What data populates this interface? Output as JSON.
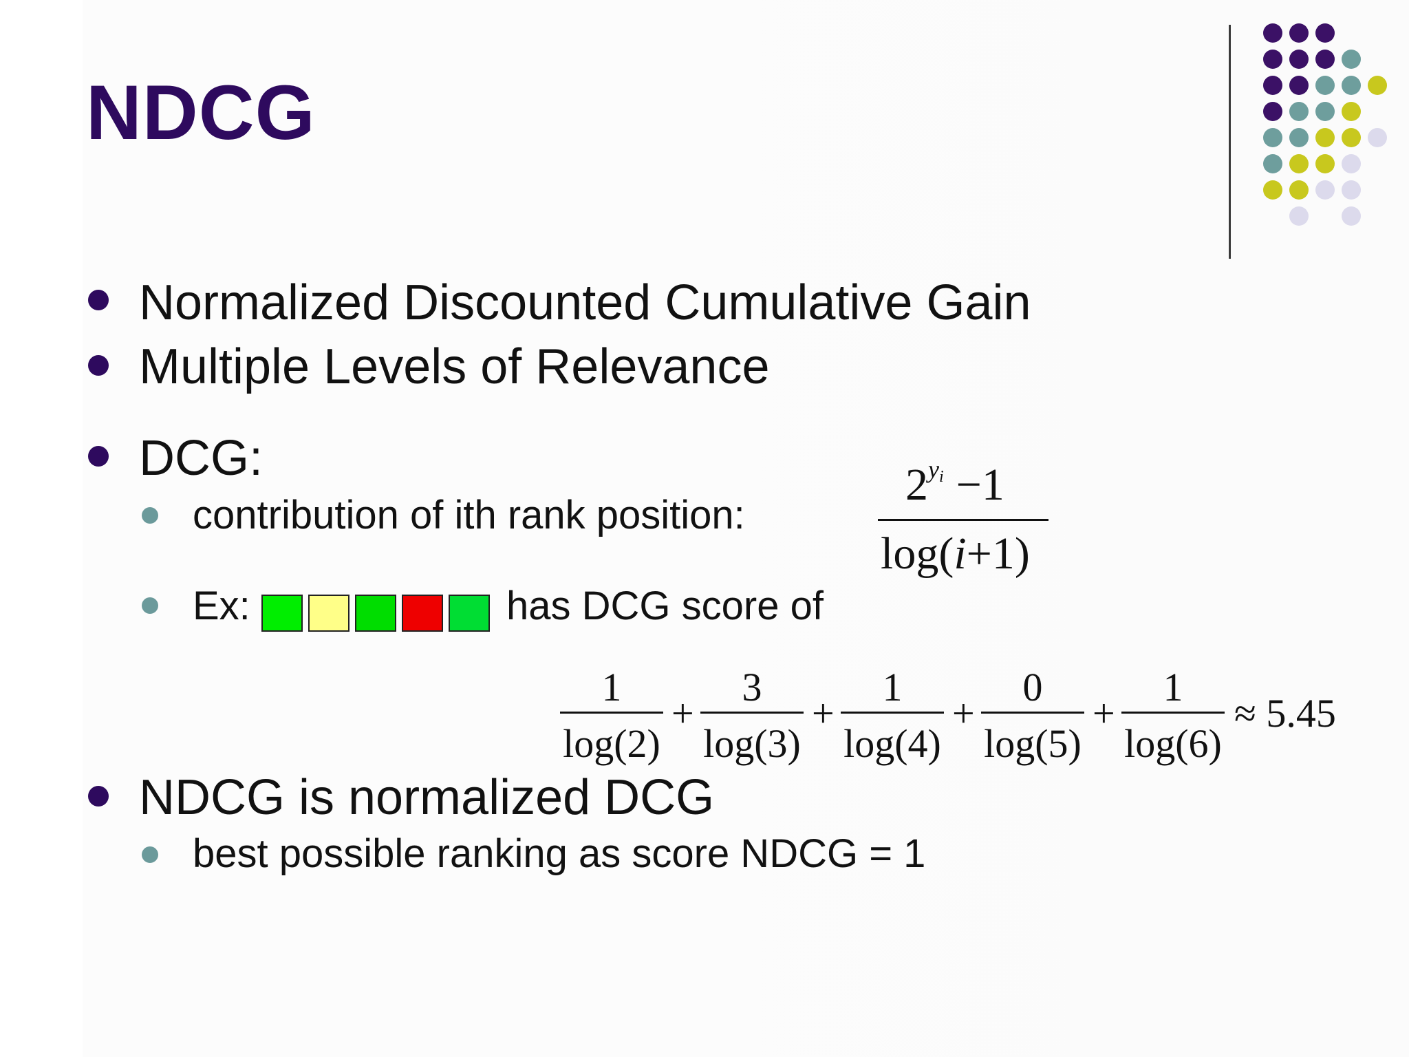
{
  "slide": {
    "title": "NDCG",
    "bullets": [
      {
        "text": "Normalized Discounted Cumulative Gain"
      },
      {
        "text": "Multiple Levels of Relevance"
      },
      {
        "text": "DCG:"
      },
      {
        "text": "NDCG is normalized DCG"
      }
    ],
    "dcg_sub": {
      "contribution": "contribution of ith rank position:",
      "example_prefix": "Ex:",
      "example_suffix": "has DCG score of"
    },
    "ndcg_sub": {
      "text": "best possible ranking as score NDCG = 1"
    }
  },
  "formula_contribution": {
    "base": "2",
    "exponent": "y",
    "exponent_sub": "i",
    "minus_one": "−1",
    "denominator_prefix": "log(",
    "denominator_var": "i",
    "denominator_suffix": "+1)"
  },
  "example_boxes": [
    {
      "color": "#00ee00",
      "label": "green"
    },
    {
      "color": "#ffff88",
      "label": "yellow"
    },
    {
      "color": "#00dd00",
      "label": "green"
    },
    {
      "color": "#ee0000",
      "label": "red"
    },
    {
      "color": "#00dd33",
      "label": "green"
    }
  ],
  "dcg_sum": {
    "terms": [
      {
        "num": "1",
        "den": "log(2)"
      },
      {
        "num": "3",
        "den": "log(3)"
      },
      {
        "num": "1",
        "den": "log(4)"
      },
      {
        "num": "0",
        "den": "log(5)"
      },
      {
        "num": "1",
        "den": "log(6)"
      }
    ],
    "plus": "+",
    "approx": "≈ 5.45"
  },
  "decor": {
    "colors": {
      "purple": "#3b1166",
      "teal": "#6e9e9d",
      "yellow": "#c8c81e",
      "lavender": "#dcdaec"
    },
    "grid": [
      [
        "purple",
        "purple",
        "purple",
        null,
        null
      ],
      [
        "purple",
        "purple",
        "purple",
        "teal",
        null
      ],
      [
        "purple",
        "purple",
        "teal",
        "teal",
        "yellow"
      ],
      [
        "purple",
        "teal",
        "teal",
        "yellow",
        null
      ],
      [
        "teal",
        "teal",
        "yellow",
        "yellow",
        "lavender"
      ],
      [
        "teal",
        "yellow",
        "yellow",
        "lavender",
        null
      ],
      [
        "yellow",
        "yellow",
        "lavender",
        "lavender",
        null
      ],
      [
        null,
        "lavender",
        null,
        "lavender",
        null
      ]
    ]
  }
}
